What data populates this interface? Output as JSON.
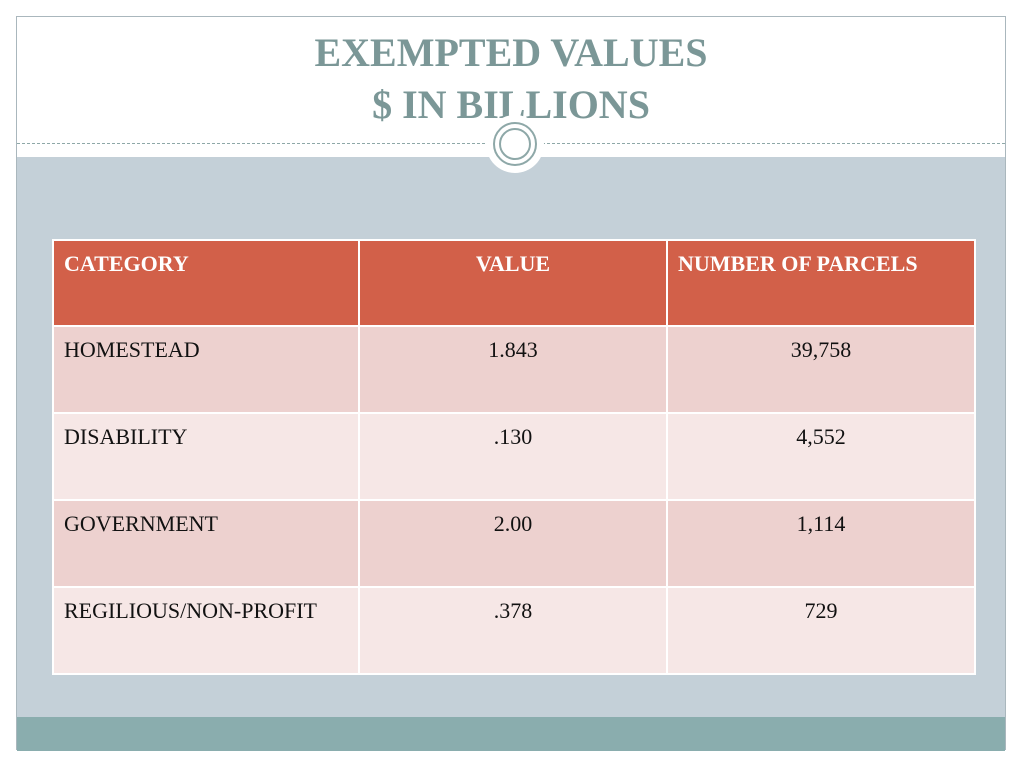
{
  "title": {
    "line1": "EXEMPTED VALUES",
    "line2": "$ IN BILLIONS"
  },
  "table": {
    "headers": [
      "CATEGORY",
      "VALUE",
      "NUMBER OF PARCELS"
    ],
    "rows": [
      {
        "category": "HOMESTEAD",
        "value": "1.843",
        "parcels": "39,758"
      },
      {
        "category": "DISABILITY",
        "value": ".130",
        "parcels": "4,552"
      },
      {
        "category": "GOVERNMENT",
        "value": "2.00",
        "parcels": "1,114"
      },
      {
        "category": "REGILIOUS/NON-PROFIT",
        "value": ".378",
        "parcels": "729"
      }
    ]
  },
  "colors": {
    "title": "#7b9797",
    "header_bg": "#d26049",
    "row_odd": "#edd1cf",
    "row_even": "#f6e7e6",
    "body_bg": "#c4d0d8",
    "footer_bar": "#8aadae"
  }
}
